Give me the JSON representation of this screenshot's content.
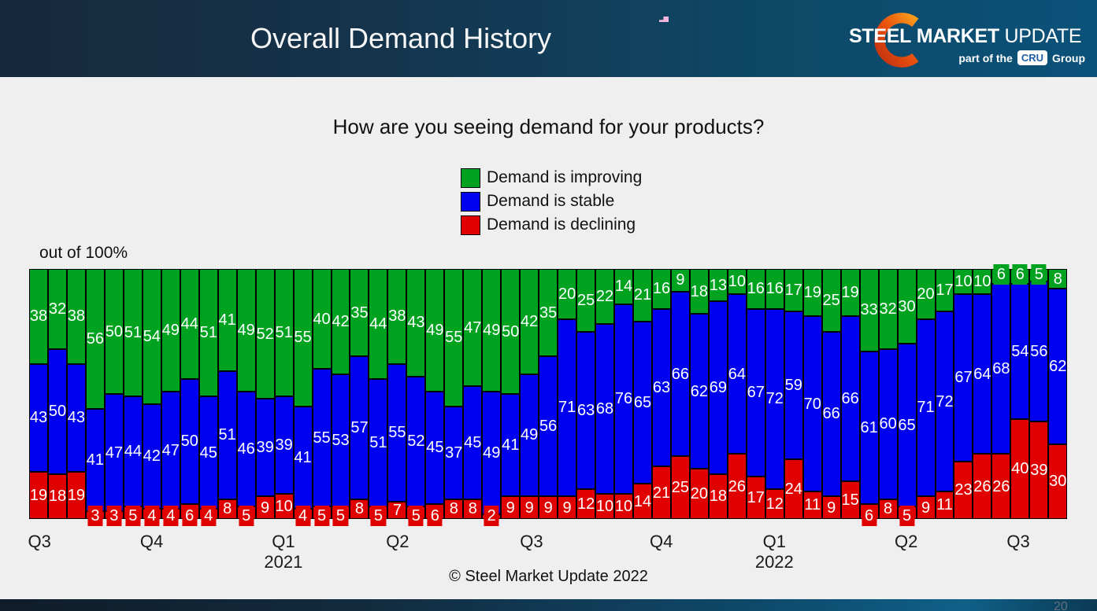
{
  "header": {
    "title": "Overall Demand History",
    "logo": {
      "steel": "STEEL",
      "market": "MARKET",
      "update": "UPDATE",
      "tagline_prefix": "part of the",
      "cru": "CRU",
      "group": "Group"
    }
  },
  "question": "How are you seeing demand for your products?",
  "axis_note": "out of 100%",
  "footer": {
    "copyright": "© Steel Market Update 2022",
    "page_number": "20"
  },
  "chart_data": {
    "type": "bar",
    "stacked": true,
    "stack_total": 100,
    "title": "How are you seeing demand for your products?",
    "ylabel": "out of 100%",
    "legend_position": "top-center",
    "grid": false,
    "series": [
      {
        "name": "Demand is improving",
        "color": "#00A320",
        "values": [
          38,
          32,
          38,
          56,
          50,
          51,
          54,
          49,
          44,
          51,
          41,
          49,
          52,
          51,
          55,
          40,
          42,
          35,
          44,
          38,
          43,
          49,
          55,
          47,
          49,
          50,
          42,
          35,
          20,
          25,
          22,
          14,
          21,
          16,
          9,
          18,
          13,
          10,
          16,
          16,
          17,
          19,
          25,
          19,
          33,
          32,
          30,
          20,
          17,
          10,
          10,
          6,
          6,
          5,
          8
        ]
      },
      {
        "name": "Demand is stable",
        "color": "#0000F0",
        "values": [
          43,
          50,
          43,
          41,
          47,
          44,
          42,
          47,
          50,
          45,
          51,
          46,
          39,
          39,
          41,
          55,
          53,
          57,
          51,
          55,
          52,
          45,
          37,
          45,
          49,
          41,
          49,
          56,
          71,
          63,
          68,
          76,
          65,
          63,
          66,
          62,
          69,
          64,
          67,
          72,
          59,
          70,
          66,
          66,
          61,
          60,
          65,
          71,
          72,
          67,
          64,
          68,
          54,
          56,
          62
        ]
      },
      {
        "name": "Demand is declining",
        "color": "#E00000",
        "values": [
          19,
          18,
          19,
          3,
          3,
          5,
          4,
          4,
          6,
          4,
          8,
          5,
          9,
          10,
          4,
          5,
          5,
          8,
          5,
          7,
          5,
          6,
          8,
          8,
          2,
          9,
          9,
          9,
          9,
          12,
          10,
          10,
          14,
          21,
          25,
          20,
          18,
          26,
          17,
          12,
          24,
          11,
          9,
          15,
          6,
          8,
          5,
          9,
          11,
          23,
          26,
          26,
          40,
          39,
          30
        ]
      }
    ],
    "x_axis": {
      "quarters": [
        {
          "label": "Q3",
          "pos": 0.01
        },
        {
          "label": "Q4",
          "pos": 0.118
        },
        {
          "label": "Q1",
          "pos": 0.245,
          "year": "2021"
        },
        {
          "label": "Q2",
          "pos": 0.355
        },
        {
          "label": "Q3",
          "pos": 0.484
        },
        {
          "label": "Q4",
          "pos": 0.609
        },
        {
          "label": "Q1",
          "pos": 0.718,
          "year": "2022"
        },
        {
          "label": "Q2",
          "pos": 0.845
        },
        {
          "label": "Q3",
          "pos": 0.953
        }
      ]
    }
  }
}
